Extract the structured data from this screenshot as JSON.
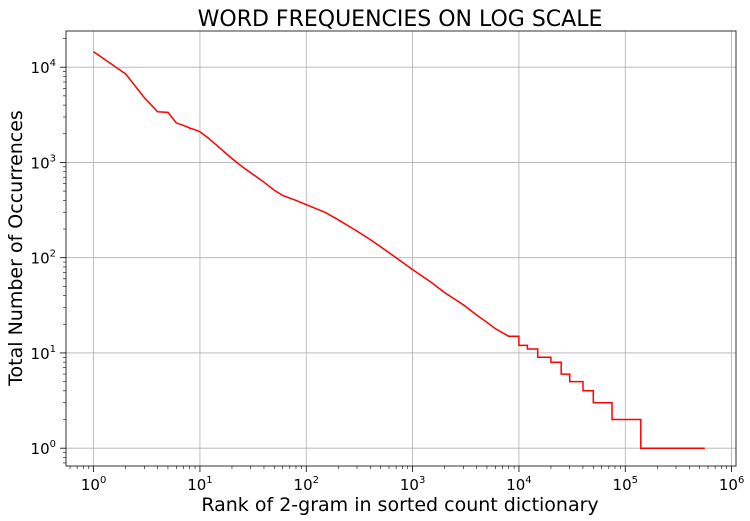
{
  "chart_data": {
    "type": "line",
    "title": "WORD FREQUENCIES ON LOG SCALE",
    "xlabel": "Rank of 2-gram in sorted count dictionary",
    "ylabel": "Total Number of Occurrences",
    "xscale": "log",
    "yscale": "log",
    "xlim": [
      0.55,
      1100000
    ],
    "ylim": [
      0.65,
      24000
    ],
    "grid": true,
    "x_ticks": [
      {
        "value": 1,
        "base": "10",
        "exp": "0"
      },
      {
        "value": 10,
        "base": "10",
        "exp": "1"
      },
      {
        "value": 100,
        "base": "10",
        "exp": "2"
      },
      {
        "value": 1000,
        "base": "10",
        "exp": "3"
      },
      {
        "value": 10000,
        "base": "10",
        "exp": "4"
      },
      {
        "value": 100000,
        "base": "10",
        "exp": "5"
      },
      {
        "value": 1000000,
        "base": "10",
        "exp": "6"
      }
    ],
    "y_ticks": [
      {
        "value": 1,
        "base": "10",
        "exp": "0"
      },
      {
        "value": 10,
        "base": "10",
        "exp": "1"
      },
      {
        "value": 100,
        "base": "10",
        "exp": "2"
      },
      {
        "value": 1000,
        "base": "10",
        "exp": "3"
      },
      {
        "value": 10000,
        "base": "10",
        "exp": "4"
      }
    ],
    "series": [
      {
        "color": "#ff0000",
        "x": [
          1,
          2,
          3,
          4,
          5,
          6,
          7,
          8,
          9,
          10,
          12,
          15,
          20,
          25,
          30,
          40,
          50,
          60,
          80,
          100,
          150,
          200,
          300,
          400,
          500,
          700,
          1000,
          1500,
          2000,
          3000,
          4000,
          5000,
          6000,
          8000,
          10000,
          12000,
          15000,
          20000,
          25000,
          30000,
          40000,
          50000,
          75000,
          140000,
          560000
        ],
        "y": [
          14500,
          8500,
          4800,
          3400,
          3350,
          2600,
          2450,
          2300,
          2200,
          2100,
          1800,
          1450,
          1100,
          900,
          780,
          620,
          510,
          450,
          400,
          360,
          300,
          250,
          190,
          155,
          130,
          100,
          75,
          55,
          43,
          32,
          25,
          21,
          18,
          15,
          12,
          11,
          9,
          8,
          6,
          5,
          4,
          3,
          2,
          1,
          1
        ]
      }
    ]
  }
}
